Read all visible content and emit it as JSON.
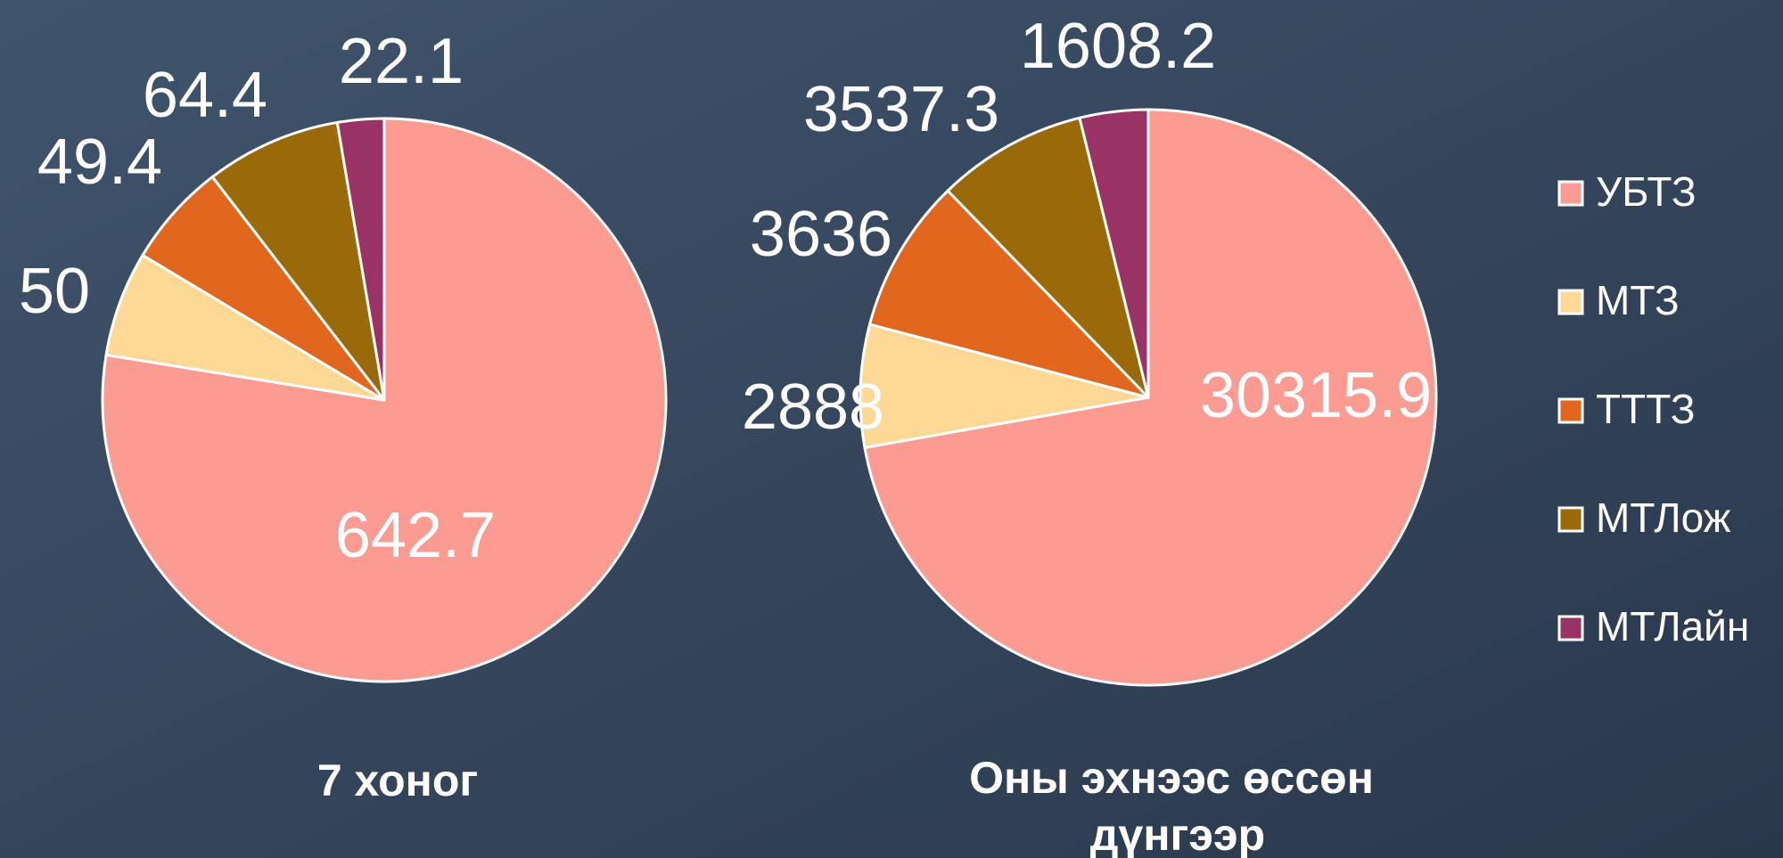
{
  "chart_data": [
    {
      "type": "pie",
      "title": "7 хоног",
      "categories": [
        "УБТЗ",
        "МТЗ",
        "ТТТЗ",
        "МТЛож",
        "МТЛайн"
      ],
      "colors": [
        "#fc9b92",
        "#fdd995",
        "#e1661e",
        "#9a6a0a",
        "#993366"
      ],
      "values": [
        642.7,
        50,
        49.4,
        64.4,
        22.1
      ]
    },
    {
      "type": "pie",
      "title": "Оны эхнээс өссөн дүнгээр",
      "values": [
        30315.9,
        2888,
        3636,
        3537.3,
        1608.2
      ]
    }
  ]
}
